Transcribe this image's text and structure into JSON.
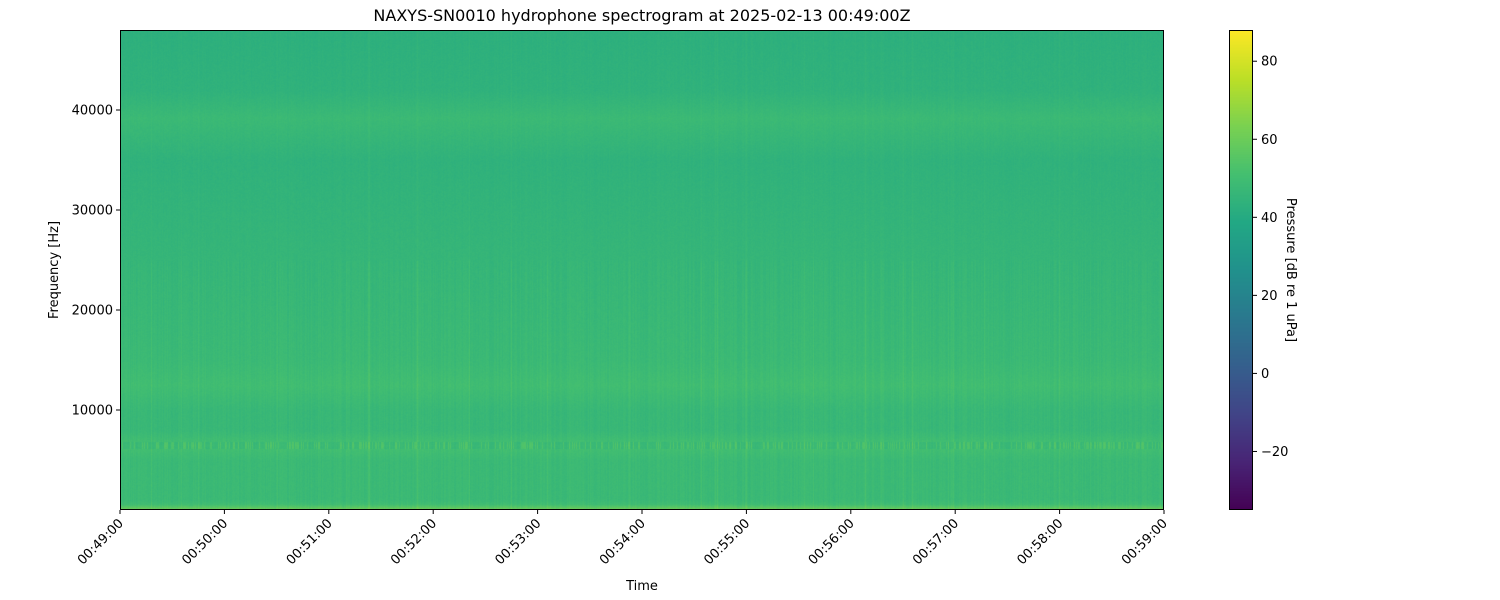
{
  "chart_data": {
    "type": "heatmap",
    "title": "NAXYS-SN0010 hydrophone spectrogram at 2025-02-13 00:49:00Z",
    "xlabel": "Time",
    "ylabel": "Frequency [Hz]",
    "colorbar_label": "Pressure [dB re 1 uPa]",
    "colormap": "viridis",
    "x_ticks": [
      "00:49:00",
      "00:50:00",
      "00:51:00",
      "00:52:00",
      "00:53:00",
      "00:54:00",
      "00:55:00",
      "00:56:00",
      "00:57:00",
      "00:58:00",
      "00:59:00"
    ],
    "y_ticks": [
      10000,
      20000,
      30000,
      40000
    ],
    "ylim": [
      0,
      48000
    ],
    "colorbar_ticks": [
      -20,
      0,
      20,
      40,
      60,
      80
    ],
    "clim": [
      -35,
      88
    ],
    "grid": false,
    "mean_level_profile": {
      "frequency_hz": [
        0,
        300,
        600,
        1000,
        3000,
        5000,
        6500,
        8000,
        10000,
        12500,
        15000,
        20000,
        25000,
        30000,
        35000,
        39200,
        42000,
        48000
      ],
      "level_db": [
        62,
        56,
        50,
        48,
        48,
        48,
        51,
        47,
        47,
        50,
        48,
        47,
        46,
        45,
        44,
        48,
        44,
        43
      ]
    },
    "features": [
      {
        "frequency_hz": 39200,
        "note": "steady tonal band"
      },
      {
        "frequency_hz": 12500,
        "note": "steady tonal band"
      },
      {
        "frequency_hz": 6500,
        "note": "intermittent tonal bursts"
      }
    ]
  }
}
